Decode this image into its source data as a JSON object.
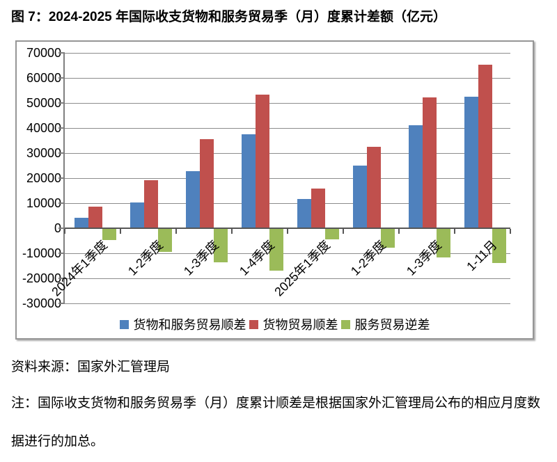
{
  "title": "图 7：2024-2025 年国际收支货物和服务贸易季（月）度累计差额（亿元）",
  "source": "资料来源：国家外汇管理局",
  "note_lines": [
    "注：国际收支货物和服务贸易季（月）度累计顺差是根据国家外汇管理局公布的相应月度数",
    "据进行的加总。"
  ],
  "colors": {
    "goods_and_services": "#4F81BD",
    "goods": "#C0504D",
    "services": "#9BBB59",
    "gridline": "#8c8c8c",
    "axis": "#565656"
  },
  "chart_data": {
    "type": "bar",
    "title": "2024-2025 年国际收支货物和服务贸易季（月）度累计差额（亿元）",
    "categories": [
      "2024年1季度",
      "1-2季度",
      "1-3季度",
      "1-4季度",
      "2025年1季度",
      "1-2季度",
      "1-3季度",
      "1-11月"
    ],
    "series": [
      {
        "name": "货物和服务贸易顺差",
        "color": "#4F81BD",
        "values": [
          4200,
          10400,
          22700,
          37400,
          11700,
          25100,
          41200,
          52400
        ]
      },
      {
        "name": "货物贸易顺差",
        "color": "#C0504D",
        "values": [
          8700,
          19100,
          35600,
          53400,
          15900,
          32400,
          52200,
          65200
        ]
      },
      {
        "name": "服务贸易逆差",
        "color": "#9BBB59",
        "values": [
          -4400,
          -9100,
          -13300,
          -16600,
          -4200,
          -7400,
          -11500,
          -13500
        ]
      }
    ],
    "xlabel": "",
    "ylabel": "",
    "ylim": [
      -30000,
      70000
    ],
    "ytick_step": 10000,
    "yticks": [
      -30000,
      -20000,
      -10000,
      0,
      10000,
      20000,
      30000,
      40000,
      50000,
      60000,
      70000
    ],
    "grid": true,
    "legend_position": "bottom",
    "unit": "亿元"
  }
}
